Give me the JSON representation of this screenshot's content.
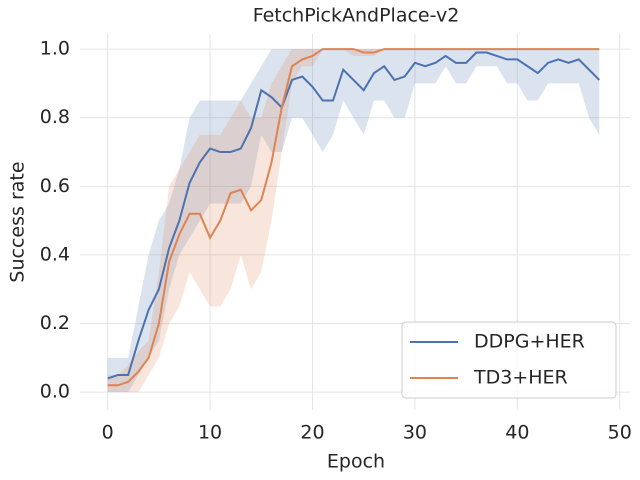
{
  "chart_data": {
    "type": "line",
    "title": "FetchPickAndPlace-v2",
    "xlabel": "Epoch",
    "ylabel": "Success rate",
    "x": [
      0,
      1,
      2,
      3,
      4,
      5,
      6,
      7,
      8,
      9,
      10,
      11,
      12,
      13,
      14,
      15,
      16,
      17,
      18,
      19,
      20,
      21,
      22,
      23,
      24,
      25,
      26,
      27,
      28,
      29,
      30,
      31,
      32,
      33,
      34,
      35,
      36,
      37,
      38,
      39,
      40,
      41,
      42,
      43,
      44,
      45,
      46,
      47,
      48
    ],
    "series": [
      {
        "name": "DDPG+HER",
        "color": "#4c72b0",
        "values": [
          0.04,
          0.05,
          0.05,
          0.15,
          0.24,
          0.3,
          0.42,
          0.5,
          0.61,
          0.67,
          0.71,
          0.7,
          0.7,
          0.71,
          0.77,
          0.88,
          0.86,
          0.83,
          0.91,
          0.92,
          0.89,
          0.85,
          0.85,
          0.94,
          0.91,
          0.88,
          0.93,
          0.95,
          0.91,
          0.92,
          0.96,
          0.95,
          0.96,
          0.98,
          0.96,
          0.96,
          0.99,
          0.99,
          0.98,
          0.97,
          0.97,
          0.95,
          0.93,
          0.96,
          0.97,
          0.96,
          0.97,
          0.94,
          0.91
        ],
        "lower": [
          0,
          0,
          0,
          0.05,
          0.1,
          0.15,
          0.3,
          0.4,
          0.45,
          0.5,
          0.55,
          0.55,
          0.55,
          0.55,
          0.6,
          0.75,
          0.7,
          0.7,
          0.8,
          0.8,
          0.75,
          0.7,
          0.75,
          0.85,
          0.8,
          0.75,
          0.85,
          0.85,
          0.8,
          0.8,
          0.9,
          0.9,
          0.9,
          0.95,
          0.9,
          0.9,
          0.95,
          0.95,
          0.95,
          0.9,
          0.9,
          0.85,
          0.85,
          0.9,
          0.9,
          0.9,
          0.9,
          0.8,
          0.75
        ],
        "upper": [
          0.1,
          0.1,
          0.1,
          0.25,
          0.4,
          0.5,
          0.55,
          0.65,
          0.8,
          0.85,
          0.85,
          0.85,
          0.85,
          0.85,
          0.9,
          0.95,
          1,
          1,
          1,
          1,
          1,
          1,
          1,
          1,
          1,
          1,
          1,
          1,
          1,
          1,
          1,
          1,
          1,
          1,
          1,
          1,
          1,
          1,
          1,
          1,
          1,
          1,
          1,
          1,
          1,
          1,
          1,
          1,
          1
        ]
      },
      {
        "name": "TD3+HER",
        "color": "#dd8452",
        "values": [
          0.02,
          0.02,
          0.03,
          0.06,
          0.1,
          0.2,
          0.38,
          0.46,
          0.52,
          0.52,
          0.45,
          0.5,
          0.58,
          0.59,
          0.53,
          0.56,
          0.67,
          0.83,
          0.95,
          0.97,
          0.98,
          1,
          1,
          1,
          1,
          0.99,
          0.99,
          1,
          1,
          1,
          1,
          1,
          1,
          1,
          1,
          1,
          1,
          1,
          1,
          1,
          1,
          1,
          1,
          1,
          1,
          1,
          1,
          1,
          1
        ],
        "lower": [
          0,
          0,
          0,
          0,
          0.05,
          0.1,
          0.2,
          0.25,
          0.35,
          0.3,
          0.25,
          0.25,
          0.3,
          0.4,
          0.3,
          0.35,
          0.5,
          0.7,
          0.9,
          0.95,
          0.95,
          1,
          1,
          1,
          0.98,
          0.98,
          0.98,
          1,
          1,
          1,
          1,
          1,
          1,
          1,
          1,
          1,
          1,
          1,
          1,
          1,
          1,
          1,
          1,
          1,
          1,
          1,
          1,
          1,
          1
        ],
        "upper": [
          0.05,
          0.05,
          0.08,
          0.12,
          0.15,
          0.35,
          0.6,
          0.65,
          0.7,
          0.75,
          0.75,
          0.75,
          0.8,
          0.85,
          0.8,
          0.8,
          0.9,
          0.95,
          1,
          1,
          1,
          1,
          1,
          1,
          1,
          1,
          1,
          1,
          1,
          1,
          1,
          1,
          1,
          1,
          1,
          1,
          1,
          1,
          1,
          1,
          1,
          1,
          1,
          1,
          1,
          1,
          1,
          1,
          1
        ]
      }
    ],
    "xlim": [
      -2.7,
      51
    ],
    "xticks": [
      0,
      10,
      20,
      30,
      40,
      50
    ],
    "ylim": [
      -0.052,
      1.044
    ],
    "yticks": [
      {
        "value": 0,
        "label": "0.0"
      },
      0.2,
      0.4,
      0.6,
      0.8,
      {
        "value": 1,
        "label": "1.0"
      }
    ],
    "grid": true,
    "legend": "lower right"
  }
}
